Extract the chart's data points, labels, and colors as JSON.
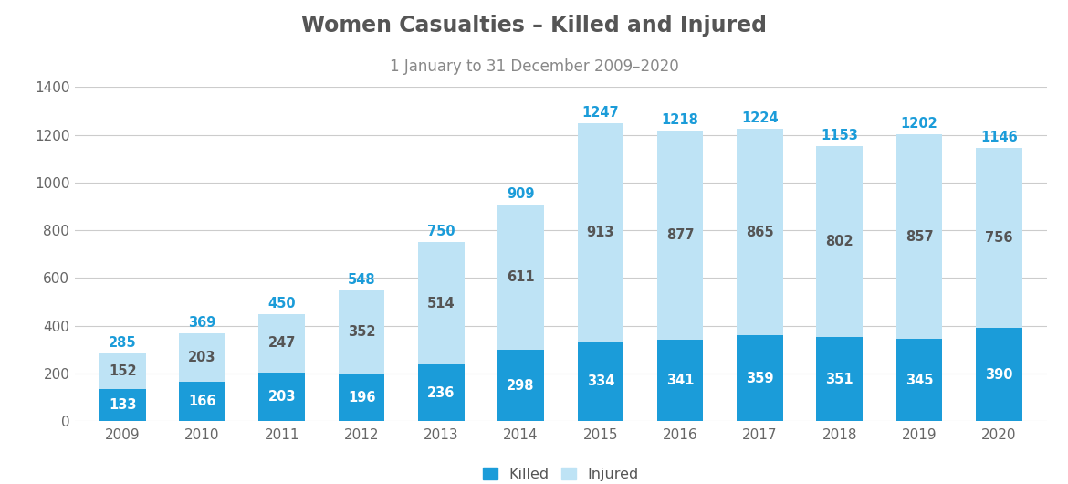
{
  "title": "Women Casualties – Killed and Injured",
  "subtitle": "1 January to 31 December 2009–2020",
  "years": [
    2009,
    2010,
    2011,
    2012,
    2013,
    2014,
    2015,
    2016,
    2017,
    2018,
    2019,
    2020
  ],
  "killed": [
    133,
    166,
    203,
    196,
    236,
    298,
    334,
    341,
    359,
    351,
    345,
    390
  ],
  "injured": [
    152,
    203,
    247,
    352,
    514,
    611,
    913,
    877,
    865,
    802,
    857,
    756
  ],
  "total": [
    285,
    369,
    450,
    548,
    750,
    909,
    1247,
    1218,
    1224,
    1153,
    1202,
    1146
  ],
  "color_killed": "#1B9CD9",
  "color_injured": "#BEE3F5",
  "color_title": "#555555",
  "color_subtitle": "#888888",
  "color_label_killed_white": "#FFFFFF",
  "color_label_injured_dark": "#555555",
  "color_total_blue": "#1B9CD9",
  "background_color": "#FFFFFF",
  "ylim": [
    0,
    1400
  ],
  "yticks": [
    0,
    200,
    400,
    600,
    800,
    1000,
    1200,
    1400
  ],
  "legend_labels": [
    "Killed",
    "Injured"
  ],
  "title_fontsize": 17,
  "subtitle_fontsize": 12,
  "tick_fontsize": 11,
  "label_fontsize": 10.5,
  "total_fontsize": 10.5
}
